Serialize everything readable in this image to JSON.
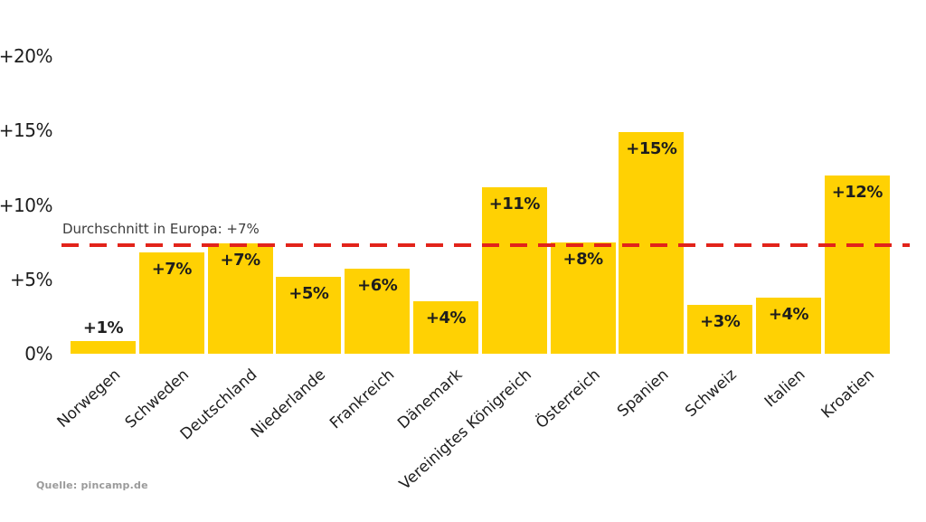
{
  "chart_data": {
    "type": "bar",
    "title": "",
    "categories": [
      "Norwegen",
      "Schweden",
      "Deutschland",
      "Niederlande",
      "Frankreich",
      "Dänemark",
      "Vereinigtes Königreich",
      "Österreich",
      "Spanien",
      "Schweiz",
      "Italien",
      "Kroatien"
    ],
    "values": [
      1,
      7,
      7,
      5,
      6,
      4,
      11,
      8,
      15,
      3,
      4,
      12
    ],
    "bar_labels": [
      "+1%",
      "+7%",
      "+7%",
      "+5%",
      "+6%",
      "+4%",
      "+11%",
      "+8%",
      "+15%",
      "+3%",
      "+4%",
      "+12%"
    ],
    "bar_heights_pct": [
      0.85,
      6.8,
      7.4,
      5.2,
      5.7,
      3.5,
      11.2,
      7.5,
      14.9,
      3.3,
      3.8,
      12.0
    ],
    "xlabel": "",
    "ylabel": "",
    "y_ticks": [
      {
        "label": "+20%",
        "value": 20
      },
      {
        "label": "+15%",
        "value": 15
      },
      {
        "label": "+10%",
        "value": 10
      },
      {
        "label": "+5%",
        "value": 5
      },
      {
        "label": "0%",
        "value": 0
      }
    ],
    "ylim": [
      0,
      22
    ],
    "grid": false,
    "legend": false,
    "average_line": {
      "label": "Durchschnitt in Europa: +7%",
      "value": 7,
      "display_value": 7.3
    },
    "colors": {
      "bar": "#ffd103",
      "average_line": "#e2231a",
      "text": "#1d1d1d",
      "annotation_text": "#3c3c3c",
      "source_text": "#9a9a9a",
      "background": "#ffffff"
    }
  },
  "source": {
    "label": "Quelle: pincamp.de"
  }
}
